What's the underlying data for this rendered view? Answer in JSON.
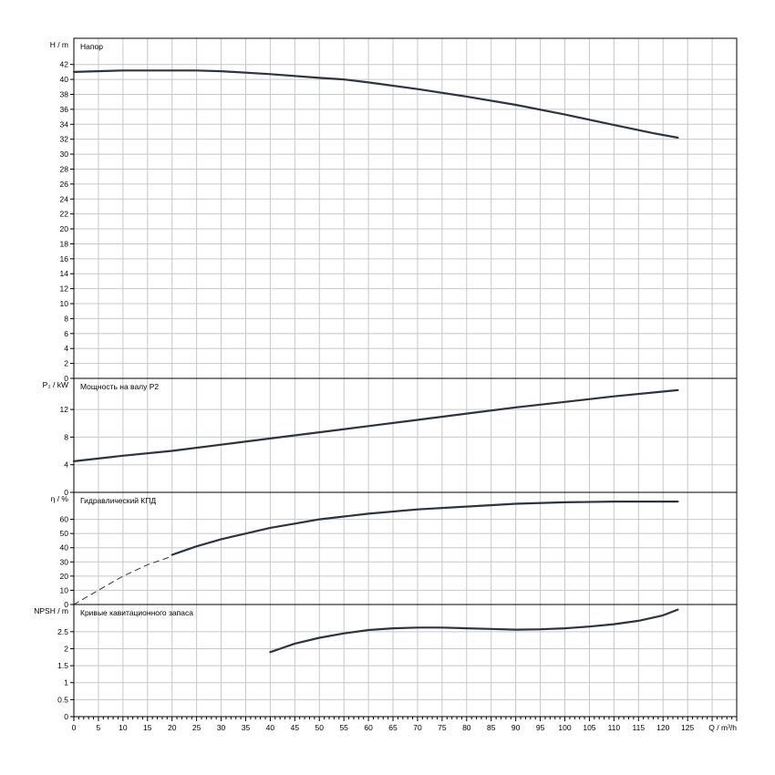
{
  "chart_data": {
    "type": "line",
    "x_axis": {
      "label": "Q / m³/h",
      "range": [
        0,
        135
      ],
      "ticks": [
        "0",
        "5",
        "10",
        "15",
        "20",
        "25",
        "30",
        "35",
        "40",
        "45",
        "50",
        "55",
        "60",
        "65",
        "70",
        "75",
        "80",
        "85",
        "90",
        "95",
        "100",
        "105",
        "110",
        "115",
        "120",
        "125"
      ]
    },
    "grid": true,
    "panels": [
      {
        "title": "Напор",
        "ylabel": "H / m",
        "ylim": [
          0,
          45.5
        ],
        "ticks": [
          "0",
          "2",
          "4",
          "6",
          "8",
          "10",
          "12",
          "14",
          "16",
          "18",
          "20",
          "22",
          "24",
          "26",
          "28",
          "30",
          "32",
          "34",
          "36",
          "38",
          "40",
          "42"
        ],
        "tick_values": [
          0,
          2,
          4,
          6,
          8,
          10,
          12,
          14,
          16,
          18,
          20,
          22,
          24,
          26,
          28,
          30,
          32,
          34,
          36,
          38,
          40,
          42
        ],
        "series": [
          {
            "dashed": false,
            "x": [
              0,
              10,
              20,
              25,
              30,
              40,
              50,
              55,
              60,
              70,
              80,
              90,
              100,
              110,
              118,
              123
            ],
            "y": [
              41.0,
              41.2,
              41.2,
              41.2,
              41.1,
              40.7,
              40.2,
              40.0,
              39.6,
              38.7,
              37.7,
              36.6,
              35.3,
              33.9,
              32.8,
              32.2
            ]
          }
        ]
      },
      {
        "title": "Мощность на валу P2",
        "ylabel": "P₂ / kW",
        "ylim": [
          0,
          16.5
        ],
        "ticks": [
          "0",
          "4",
          "8",
          "12"
        ],
        "tick_values": [
          0,
          4,
          8,
          12
        ],
        "series": [
          {
            "dashed": false,
            "x": [
              0,
              10,
              20,
              30,
              40,
              50,
              60,
              70,
              80,
              90,
              100,
              110,
              123
            ],
            "y": [
              4.5,
              5.3,
              6.0,
              6.9,
              7.8,
              8.7,
              9.6,
              10.5,
              11.4,
              12.3,
              13.1,
              13.9,
              14.8
            ]
          }
        ]
      },
      {
        "title": "Гидравлический КПД",
        "ylabel": "η / %",
        "ylim": [
          0,
          79
        ],
        "ticks": [
          "0",
          "10",
          "20",
          "30",
          "40",
          "50",
          "60"
        ],
        "tick_values": [
          0,
          10,
          20,
          30,
          40,
          50,
          60
        ],
        "series": [
          {
            "dashed": true,
            "x": [
              0,
              5,
              10,
              15,
              20
            ],
            "y": [
              0,
              10,
              20,
              28,
              34
            ]
          },
          {
            "dashed": false,
            "x": [
              20,
              25,
              30,
              35,
              40,
              45,
              50,
              55,
              60,
              70,
              80,
              90,
              100,
              110,
              123
            ],
            "y": [
              35,
              41,
              46,
              50,
              54,
              57,
              60,
              62,
              64,
              67,
              69,
              71,
              72,
              72.5,
              72.5
            ]
          }
        ]
      },
      {
        "title": "Кривые кавитационного запаса",
        "ylabel": "NPSH / m",
        "ylim": [
          0,
          3.3
        ],
        "ticks": [
          "0",
          "0.5",
          "1",
          "1.5",
          "2",
          "2.5"
        ],
        "tick_values": [
          0,
          0.5,
          1,
          1.5,
          2,
          2.5
        ],
        "series": [
          {
            "dashed": false,
            "x": [
              40,
              42,
              45,
              50,
              55,
              60,
              65,
              70,
              75,
              80,
              85,
              90,
              95,
              100,
              105,
              110,
              115,
              120,
              123
            ],
            "y": [
              1.9,
              2.0,
              2.15,
              2.32,
              2.45,
              2.55,
              2.6,
              2.62,
              2.62,
              2.6,
              2.58,
              2.56,
              2.57,
              2.6,
              2.65,
              2.72,
              2.82,
              2.98,
              3.15
            ]
          }
        ]
      }
    ]
  }
}
